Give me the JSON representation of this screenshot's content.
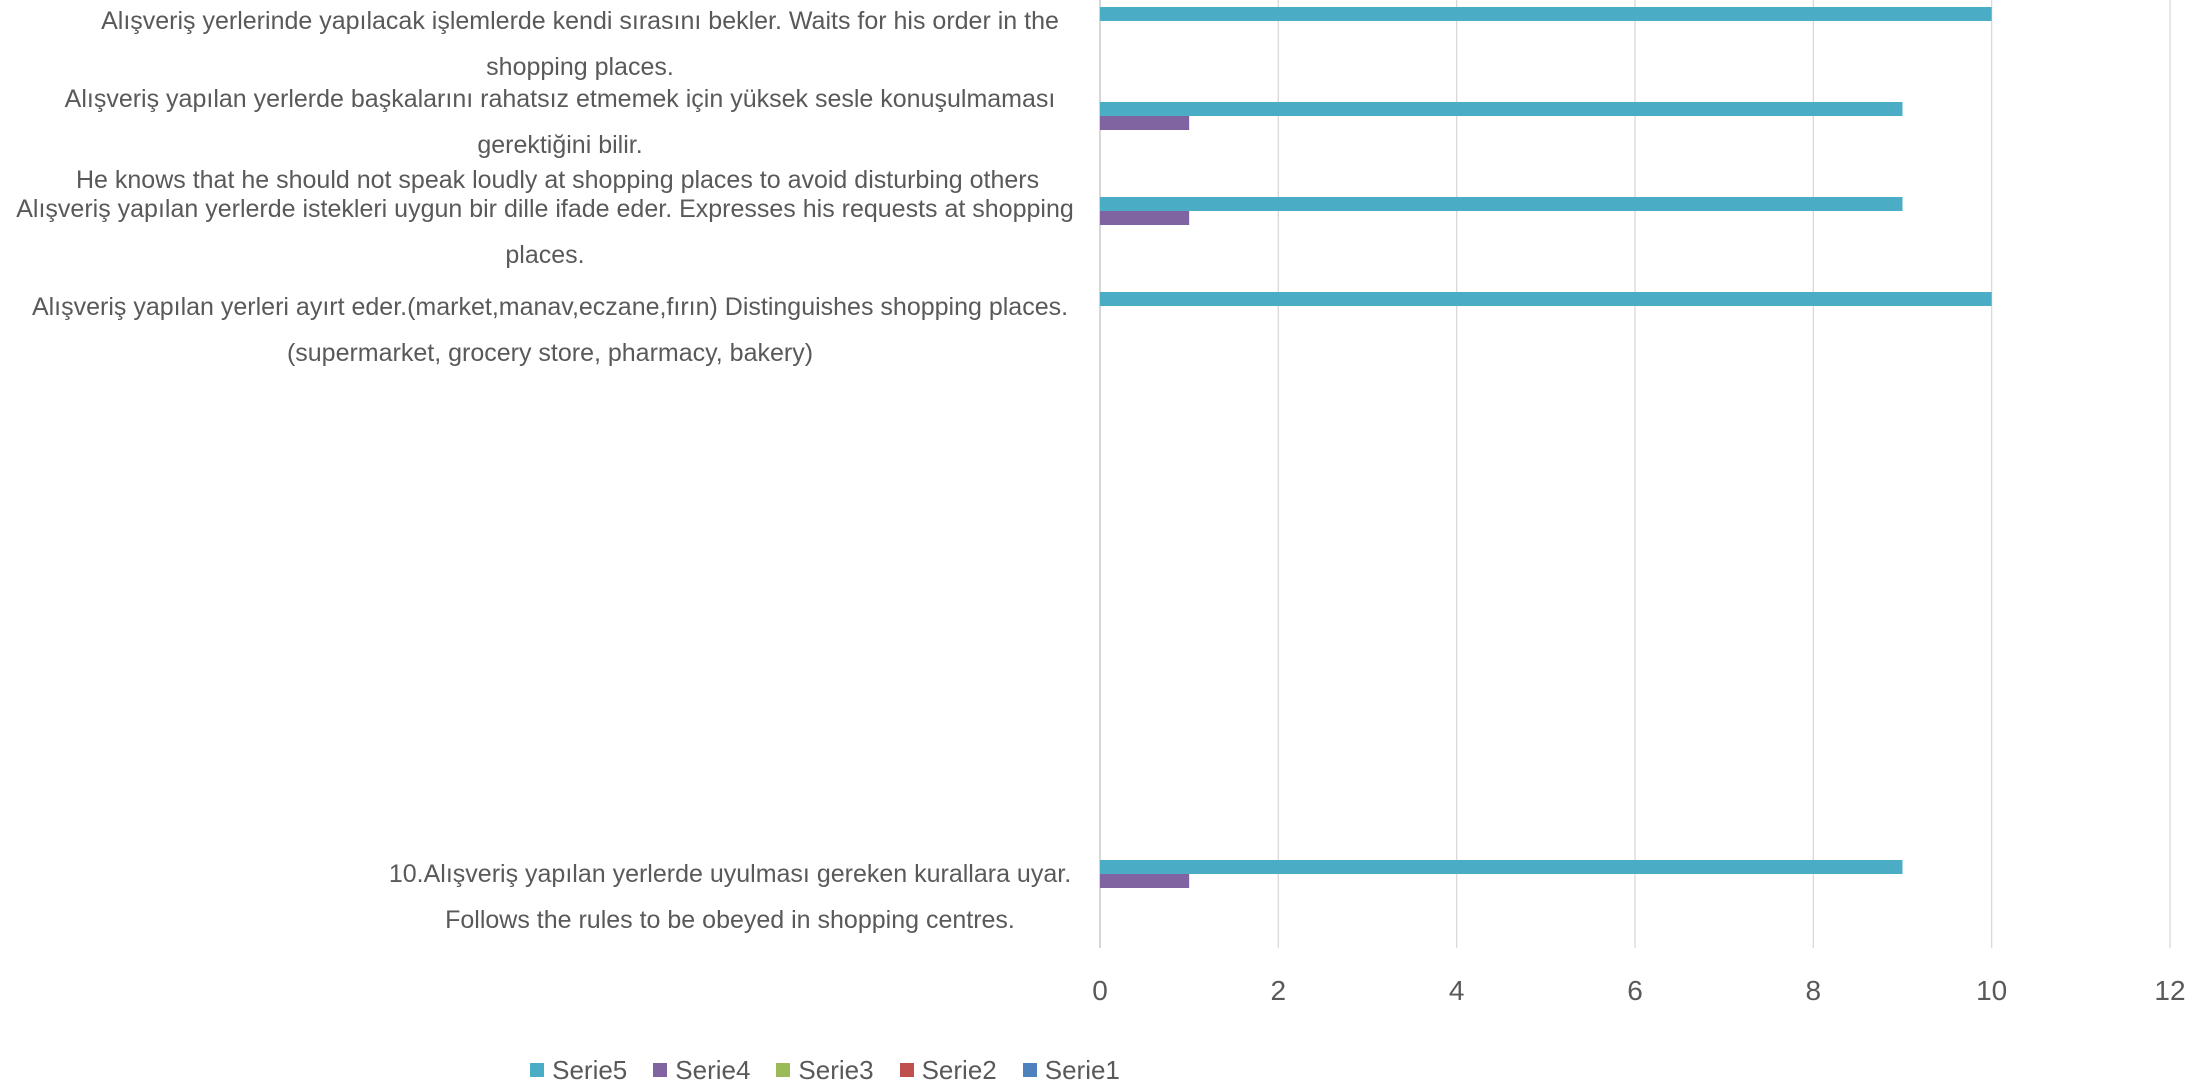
{
  "chart_data": {
    "type": "bar",
    "orientation": "horizontal",
    "xlim": [
      0,
      12
    ],
    "xticks": [
      "0",
      "2",
      "4",
      "6",
      "8",
      "10",
      "12"
    ],
    "grid": true,
    "legend_position": "bottom",
    "categories": [
      "Alışveriş yerlerinde yapılacak işlemlerde kendi sırasını bekler. Waits for his order in the shopping places.",
      "Alışveriş  yapılan  yerlerde  başkalarını  rahatsız  etmemek  için yüksek sesle konuşulmaması gerektiğini bilir.",
      "Alışveriş yapılan yerlerde istekleri uygun bir dille ifade eder. Expresses his requests at shopping places.",
      "Alışveriş yapılan yerleri ayırt eder.(market,manav,eczane,fırın) Distinguishes shopping places. (supermarket, grocery store, pharmacy, bakery)",
      "10.Alışveriş yapılan yerlerde uyulması gereken kurallara uyar. Follows the rules to be obeyed in shopping centres."
    ],
    "category_note": "He knows that he should not speak loudly at shopping places to avoid disturbing others",
    "series": [
      {
        "name": "Serie5",
        "color": "#4BACC6",
        "values": [
          10,
          9,
          9,
          10,
          9
        ]
      },
      {
        "name": "Serie4",
        "color": "#8064A2",
        "values": [
          0,
          1,
          1,
          0,
          1
        ]
      },
      {
        "name": "Serie3",
        "color": "#9BBB59",
        "values": [
          0,
          0,
          0,
          0,
          0
        ]
      },
      {
        "name": "Serie2",
        "color": "#C0504D",
        "values": [
          0,
          0,
          0,
          0,
          0
        ]
      },
      {
        "name": "Serie1",
        "color": "#4F81BD",
        "values": [
          0,
          0,
          0,
          0,
          0
        ]
      }
    ]
  }
}
